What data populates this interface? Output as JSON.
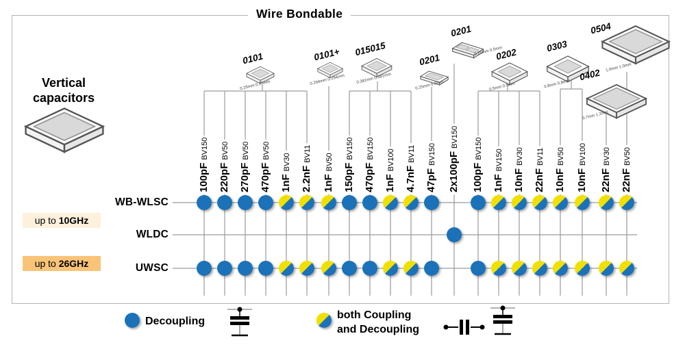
{
  "title": "Wire Bondable",
  "left_panel": {
    "label_line1": "Vertical",
    "label_line2": "capacitors"
  },
  "packages": [
    {
      "name": "0101",
      "dims": "0.25mm 0.25mm",
      "spans_columns": "1-6"
    },
    {
      "name": "0101+",
      "dims": "0.294mm 0.294mm",
      "spans_columns": "7"
    },
    {
      "name": "015015",
      "dims": "0.381mm 0.381mm",
      "spans_columns": "8-11"
    },
    {
      "name": "0201",
      "dims": "0.25mm 0.5mm",
      "spans_columns": "12"
    },
    {
      "name": "0201",
      "dims": "0.25mm 0.5mm",
      "spans_columns": "13"
    },
    {
      "name": "0202",
      "dims": "0.5mm 0.5mm",
      "spans_columns": "14-17"
    },
    {
      "name": "0303",
      "dims": "0.8mm 0.8mm",
      "spans_columns": "18-19"
    },
    {
      "name": "0402",
      "dims": "0.7mm 1.2mm",
      "spans_columns": "20"
    },
    {
      "name": "0504",
      "dims": "1.0mm 1.0mm",
      "spans_columns": "21"
    }
  ],
  "columns": [
    {
      "value": "100pF",
      "bv": "BV150"
    },
    {
      "value": "220pF",
      "bv": "BV50"
    },
    {
      "value": "270pF",
      "bv": "BV50"
    },
    {
      "value": "470pF",
      "bv": "BV50"
    },
    {
      "value": "1nF",
      "bv": "BV30"
    },
    {
      "value": "2.2nF",
      "bv": "BV11"
    },
    {
      "value": "1nF",
      "bv": "BV50"
    },
    {
      "value": "150pF",
      "bv": "BV150"
    },
    {
      "value": "470pF",
      "bv": "BV150"
    },
    {
      "value": "1nF",
      "bv": "BV100"
    },
    {
      "value": "4.7nF",
      "bv": "BV11"
    },
    {
      "value": "47pF",
      "bv": "BV150"
    },
    {
      "value": "2x100pF",
      "bv": "BV150"
    },
    {
      "value": "100pF",
      "bv": "BV150"
    },
    {
      "value": "1nF",
      "bv": "BV150"
    },
    {
      "value": "10nF",
      "bv": "BV30"
    },
    {
      "value": "22nF",
      "bv": "BV11"
    },
    {
      "value": "10nF",
      "bv": "BV50"
    },
    {
      "value": "10nF",
      "bv": "BV100"
    },
    {
      "value": "22nF",
      "bv": "BV30"
    },
    {
      "value": "22nF",
      "bv": "BV50"
    }
  ],
  "rows": [
    {
      "label": "WB-WLSC",
      "dots": [
        "decoupling",
        "decoupling",
        "decoupling",
        "decoupling",
        "both",
        "both",
        "both",
        "decoupling",
        "decoupling",
        "both",
        "both",
        "decoupling",
        "none",
        "decoupling",
        "both",
        "both",
        "both",
        "both",
        "both",
        "both",
        "both"
      ]
    },
    {
      "label": "WLDC",
      "dots": [
        "none",
        "none",
        "none",
        "none",
        "none",
        "none",
        "none",
        "none",
        "none",
        "none",
        "none",
        "none",
        "decoupling",
        "none",
        "none",
        "none",
        "none",
        "none",
        "none",
        "none",
        "none"
      ]
    },
    {
      "label": "UWSC",
      "dots": [
        "decoupling",
        "decoupling",
        "decoupling",
        "decoupling",
        "both",
        "both",
        "both",
        "decoupling",
        "decoupling",
        "both",
        "both",
        "decoupling",
        "none",
        "decoupling",
        "both",
        "both",
        "both",
        "both",
        "both",
        "both",
        "both"
      ]
    }
  ],
  "frequency_badges": [
    {
      "prefix": "up to",
      "value": "10GHz"
    },
    {
      "prefix": "up to",
      "value": "26GHz"
    }
  ],
  "legend": {
    "decoupling_label": "Decoupling",
    "both_label_line1": "both Coupling",
    "both_label_line2": "and Decoupling"
  },
  "colors": {
    "decoupling_blue": "#1b72b8",
    "coupling_yellow": "#f0e000",
    "line_gray": "#9a9a9a",
    "badge_10ghz_bg": "#fdf0dc",
    "badge_26ghz_bg": "#f9c478"
  }
}
